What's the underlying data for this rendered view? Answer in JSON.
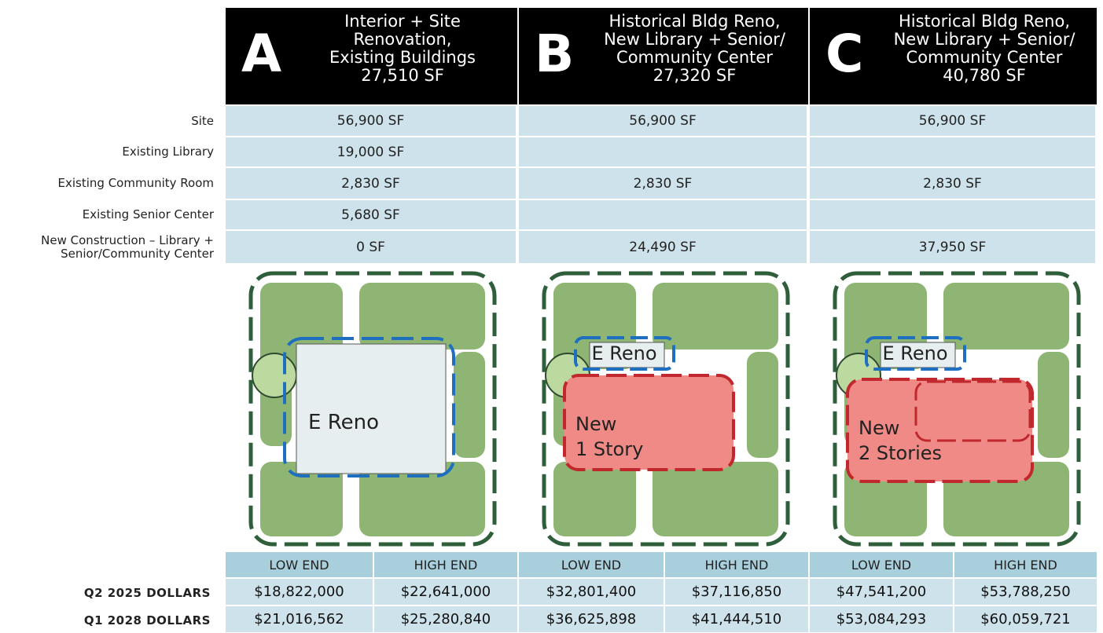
{
  "options": [
    {
      "letter": "A",
      "title_lines": [
        "Interior + Site",
        "Renovation,",
        "Existing Buildings"
      ],
      "area": "27,510 SF",
      "plan_labels": [
        {
          "lines": [
            "E Reno"
          ]
        }
      ]
    },
    {
      "letter": "B",
      "title_lines": [
        "Historical Bldg Reno,",
        "New Library + Senior/",
        "Community Center"
      ],
      "area": "27,320 SF",
      "plan_labels": [
        {
          "lines": [
            "E Reno"
          ]
        },
        {
          "lines": [
            "New",
            "1 Story"
          ]
        }
      ]
    },
    {
      "letter": "C",
      "title_lines": [
        "Historical Bldg Reno,",
        "New Library + Senior/",
        "Community Center"
      ],
      "area": "40,780 SF",
      "plan_labels": [
        {
          "lines": [
            "E Reno"
          ]
        },
        {
          "lines": [
            "New",
            "2 Stories"
          ]
        }
      ]
    }
  ],
  "rows": [
    {
      "label": [
        "Site"
      ],
      "values": [
        "56,900 SF",
        "56,900 SF",
        "56,900 SF"
      ]
    },
    {
      "label": [
        "Existing Library"
      ],
      "values": [
        "19,000 SF",
        null,
        null
      ]
    },
    {
      "label": [
        "Existing Community Room"
      ],
      "values": [
        "2,830 SF",
        "2,830 SF",
        "2,830 SF"
      ]
    },
    {
      "label": [
        "Existing Senior Center"
      ],
      "values": [
        "5,680 SF",
        null,
        null
      ]
    },
    {
      "label": [
        "New Construction – Library +",
        "Senior/Community Center"
      ],
      "values": [
        "0 SF",
        "24,490 SF",
        "37,950 SF"
      ]
    }
  ],
  "cost_headers": [
    "LOW END",
    "HIGH END"
  ],
  "costs": [
    {
      "label": "Q2 2025 DOLLARS",
      "values": [
        "$18,822,000",
        "$22,641,000",
        "$32,801,400",
        "$37,116,850",
        "$47,541,200",
        "$53,788,250"
      ]
    },
    {
      "label": "Q1 2028 DOLLARS",
      "values": [
        "$21,016,562",
        "$25,280,840",
        "$36,625,898",
        "$41,444,510",
        "$53,084,293",
        "$60,059,721"
      ]
    }
  ]
}
